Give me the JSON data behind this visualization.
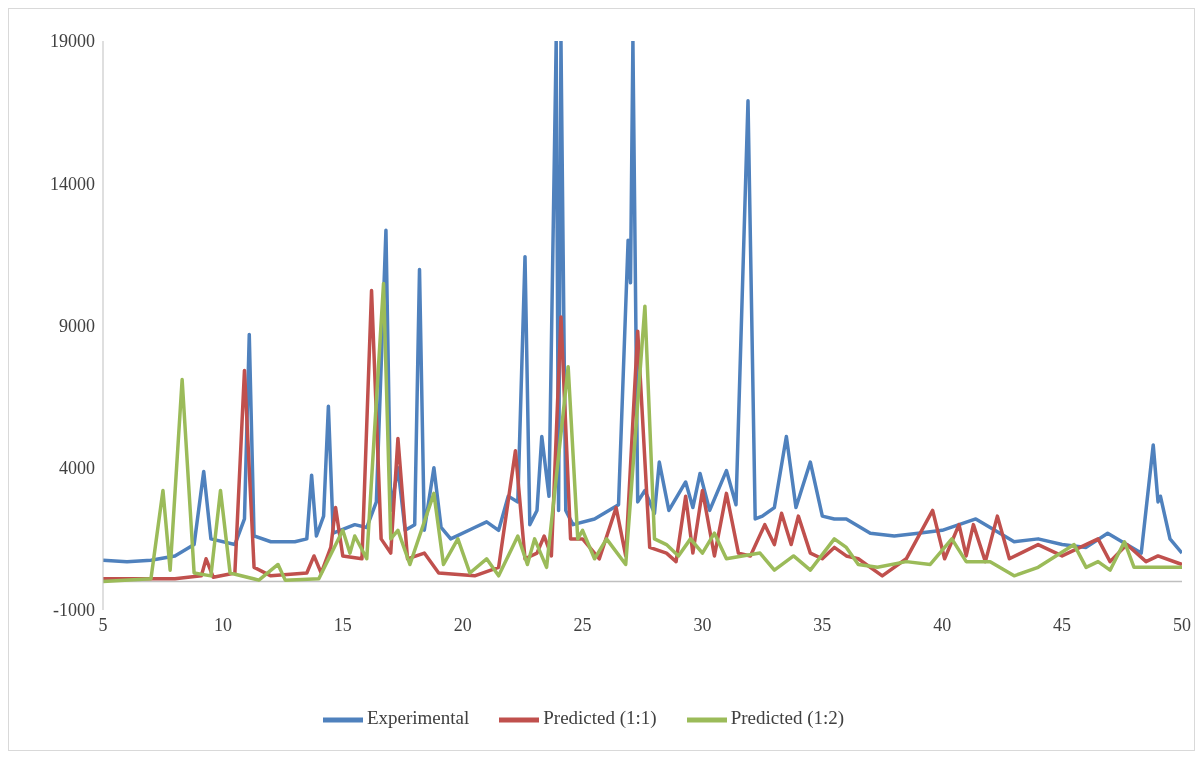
{
  "chart_data": {
    "type": "line",
    "xlim": [
      5,
      50
    ],
    "xticks": [
      5,
      10,
      15,
      20,
      25,
      30,
      35,
      40,
      45,
      50
    ],
    "ylim": [
      -1000,
      19000
    ],
    "yticks": [
      -1000,
      4000,
      9000,
      14000,
      19000
    ],
    "grid": false,
    "legend": "bottom",
    "marker": "none",
    "line_style": "solid",
    "series": [
      {
        "name": "Experimental",
        "color": "#4f81bd",
        "x": [
          5,
          6,
          7,
          8,
          8.8,
          9.2,
          9.5,
          10.5,
          10.9,
          11.1,
          11.3,
          12,
          13,
          13.5,
          13.7,
          13.9,
          14.2,
          14.4,
          14.6,
          15.5,
          16,
          16.4,
          16.8,
          17,
          17.3,
          17.6,
          18,
          18.2,
          18.4,
          18.8,
          19.1,
          19.5,
          20.5,
          21,
          21.5,
          21.9,
          22.3,
          22.6,
          22.8,
          23.1,
          23.3,
          23.6,
          23.9,
          24.0,
          24.1,
          24.3,
          24.6,
          25.5,
          26.5,
          26.9,
          27.0,
          27.1,
          27.3,
          27.6,
          28,
          28.2,
          28.6,
          29.3,
          29.6,
          29.9,
          30.3,
          31,
          31.4,
          31.9,
          32.2,
          32.5,
          33,
          33.5,
          33.9,
          34.5,
          35,
          35.5,
          36,
          37,
          38,
          39,
          40,
          41.4,
          42,
          43,
          44,
          45,
          46,
          46.9,
          47.5,
          48.3,
          48.8,
          49,
          49.1,
          49.5,
          50
        ],
        "values": [
          750,
          700,
          750,
          900,
          1300,
          3870,
          1500,
          1300,
          2200,
          8680,
          1600,
          1400,
          1400,
          1500,
          3740,
          1600,
          2300,
          6160,
          1700,
          2000,
          1900,
          2800,
          12350,
          2500,
          4000,
          1800,
          2000,
          10970,
          1800,
          4000,
          1900,
          1500,
          1900,
          2100,
          1800,
          3000,
          2800,
          11420,
          2000,
          2500,
          5100,
          3000,
          19000,
          2500,
          19000,
          2500,
          2000,
          2200,
          2700,
          12000,
          10500,
          19000,
          2800,
          3200,
          2400,
          4200,
          2500,
          3500,
          2600,
          3800,
          2500,
          3900,
          2700,
          16900,
          2200,
          2300,
          2600,
          5100,
          2600,
          4200,
          2300,
          2200,
          2200,
          1700,
          1600,
          1700,
          1800,
          2200,
          1900,
          1400,
          1500,
          1300,
          1200,
          1700,
          1400,
          1000,
          4800,
          2800,
          3000,
          1500,
          1000
        ]
      },
      {
        "name": "Predicted (1:1)",
        "color": "#c0504d",
        "x": [
          5,
          8,
          9.1,
          9.3,
          9.6,
          10.5,
          10.9,
          11.3,
          12,
          13.5,
          13.8,
          14.1,
          14.5,
          14.7,
          15,
          15.8,
          16.2,
          16.6,
          17,
          17.3,
          17.7,
          18.4,
          19,
          20.5,
          21.5,
          22.2,
          22.6,
          23.1,
          23.4,
          23.7,
          24.1,
          24.5,
          25,
          25.7,
          26.4,
          26.8,
          27.3,
          27.8,
          28.5,
          28.9,
          29.3,
          29.6,
          30,
          30.5,
          31,
          31.5,
          32,
          32.6,
          33,
          33.3,
          33.7,
          34,
          34.5,
          35,
          35.5,
          36,
          36.5,
          37.5,
          38.5,
          39.6,
          40.1,
          40.7,
          41,
          41.3,
          41.8,
          42.3,
          42.8,
          44,
          45,
          46.5,
          47,
          47.7,
          48.5,
          49,
          50
        ],
        "values": [
          100,
          100,
          200,
          800,
          150,
          300,
          7420,
          500,
          200,
          300,
          900,
          300,
          1200,
          2600,
          900,
          800,
          10230,
          1500,
          1000,
          5030,
          800,
          1000,
          300,
          200,
          500,
          4600,
          800,
          1000,
          1600,
          900,
          9300,
          1500,
          1500,
          800,
          2600,
          900,
          8800,
          1200,
          1000,
          700,
          3000,
          1000,
          3200,
          900,
          3100,
          1000,
          900,
          2000,
          1300,
          2400,
          1300,
          2300,
          1000,
          800,
          1200,
          900,
          800,
          200,
          800,
          2500,
          800,
          2000,
          900,
          2000,
          700,
          2300,
          800,
          1300,
          900,
          1500,
          700,
          1300,
          700,
          900,
          600
        ]
      },
      {
        "name": "Predicted (1:2)",
        "color": "#9bbb59",
        "x": [
          5,
          7,
          7.5,
          7.8,
          8.3,
          8.8,
          9.5,
          9.9,
          10.3,
          11.5,
          12.3,
          12.6,
          14,
          15,
          15.3,
          15.5,
          16,
          16.7,
          17.0,
          17.3,
          17.8,
          18.8,
          19.2,
          19.8,
          20.3,
          21,
          21.5,
          22.3,
          22.7,
          23,
          23.5,
          24.4,
          24.8,
          25,
          25.5,
          26,
          26.8,
          27.6,
          28,
          28.5,
          29,
          29.5,
          30,
          30.5,
          31,
          32.4,
          33,
          33.8,
          34.5,
          35.5,
          36,
          36.5,
          37.3,
          38.5,
          39.5,
          40.4,
          41,
          42,
          43,
          44,
          45.5,
          46,
          46.5,
          47,
          47.6,
          48,
          49,
          50
        ],
        "values": [
          0,
          100,
          3200,
          400,
          7100,
          300,
          200,
          3200,
          300,
          50,
          600,
          50,
          100,
          1800,
          1000,
          1600,
          800,
          10480,
          1500,
          1800,
          600,
          3100,
          600,
          1500,
          300,
          800,
          200,
          1600,
          600,
          1500,
          500,
          7550,
          1500,
          1800,
          800,
          1500,
          600,
          9680,
          1500,
          1300,
          900,
          1500,
          1000,
          1700,
          800,
          1000,
          400,
          900,
          400,
          1500,
          1200,
          600,
          500,
          700,
          600,
          1500,
          700,
          700,
          200,
          500,
          1300,
          500,
          700,
          400,
          1400,
          500,
          500,
          500
        ]
      }
    ]
  }
}
